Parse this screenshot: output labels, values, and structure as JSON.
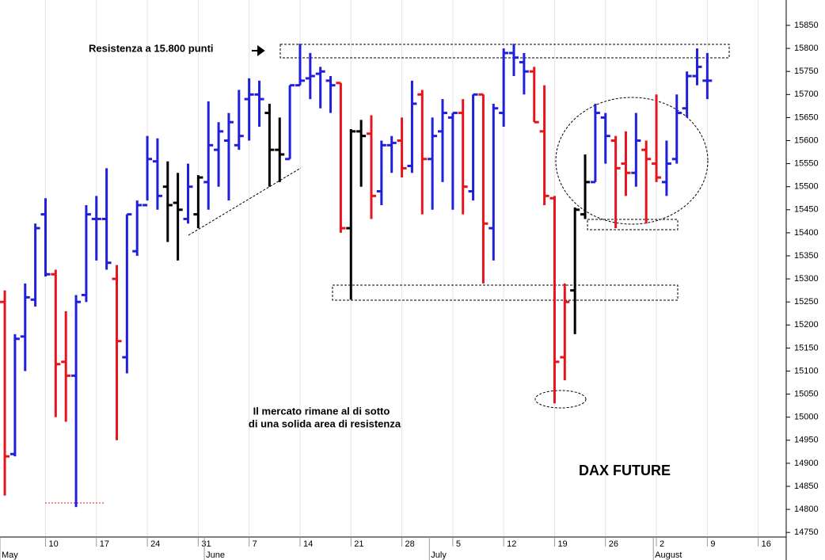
{
  "chart_data": {
    "type": "ohlc",
    "annotations": [
      "Resistenza a 15.800 punti",
      "Il mercato rimane al di sotto",
      "di una solida area di resistenza",
      "DAX FUTURE"
    ],
    "x": [
      0,
      1,
      2,
      3,
      4,
      5,
      6,
      7,
      8,
      9,
      10,
      11,
      12,
      13,
      14,
      15,
      16,
      17,
      18,
      19,
      20,
      21,
      22,
      23,
      24,
      25,
      26,
      27,
      28,
      29,
      30,
      31,
      32,
      33,
      34,
      35,
      36,
      37,
      38,
      39,
      40,
      41,
      42,
      43,
      44,
      45,
      46,
      47,
      48,
      49,
      50,
      51,
      52,
      53,
      54,
      55,
      56,
      57,
      58,
      59,
      60,
      61,
      62,
      63,
      64,
      65,
      66,
      67,
      68,
      69
    ],
    "open": [
      15250,
      14920,
      15175,
      15255,
      15440,
      15310,
      15120,
      15090,
      15265,
      15430,
      15430,
      15300,
      15130,
      15360,
      15460,
      15555,
      15500,
      15465,
      15430,
      15440,
      15510,
      15580,
      15600,
      15590,
      15690,
      15700,
      15660,
      15580,
      15560,
      15720,
      15735,
      15745,
      15730,
      15725,
      15410,
      15620,
      15615,
      15490,
      15590,
      15600,
      15545,
      15700,
      15560,
      15620,
      15650,
      15660,
      15490,
      15700,
      15410,
      15660,
      15790,
      15770,
      15750,
      15620,
      15475,
      15130,
      15275,
      15440,
      15510,
      15650,
      15600,
      15550,
      15530,
      15580,
      15550,
      15510,
      15560,
      15670,
      15740,
      15730
    ],
    "high": [
      15275,
      15180,
      15290,
      15420,
      15475,
      15320,
      15230,
      15265,
      15460,
      15480,
      15540,
      15330,
      15440,
      15470,
      15610,
      15605,
      15555,
      15530,
      15550,
      15525,
      15685,
      15640,
      15660,
      15710,
      15735,
      15730,
      15680,
      15650,
      15720,
      15810,
      15790,
      15760,
      15740,
      15725,
      15625,
      15645,
      15655,
      15600,
      15610,
      15650,
      15730,
      15710,
      15650,
      15690,
      15660,
      15690,
      15700,
      15700,
      15680,
      15800,
      15810,
      15790,
      15760,
      15720,
      15480,
      15290,
      15455,
      15570,
      15680,
      15660,
      15610,
      15620,
      15660,
      15600,
      15700,
      15600,
      15700,
      15750,
      15800,
      15790
    ],
    "low": [
      14830,
      14915,
      15100,
      15240,
      15305,
      15000,
      14990,
      14805,
      15250,
      15340,
      15320,
      14950,
      15095,
      15350,
      15470,
      15450,
      15380,
      15340,
      15420,
      15410,
      15450,
      15500,
      15470,
      15580,
      15600,
      15630,
      15500,
      15510,
      15560,
      15720,
      15690,
      15670,
      15660,
      15400,
      15255,
      15500,
      15430,
      15460,
      15530,
      15520,
      15530,
      15440,
      15450,
      15510,
      15450,
      15440,
      15470,
      15290,
      15340,
      15630,
      15740,
      15700,
      15640,
      15460,
      15030,
      15080,
      15180,
      15430,
      15510,
      15550,
      15410,
      15480,
      15500,
      15420,
      15510,
      15480,
      15550,
      15650,
      15720,
      15690
    ],
    "close": [
      14915,
      15170,
      15260,
      15410,
      15310,
      15115,
      15090,
      15250,
      15440,
      15430,
      15335,
      15165,
      15440,
      15460,
      15560,
      15480,
      15460,
      15450,
      15500,
      15520,
      15590,
      15620,
      15640,
      15610,
      15700,
      15690,
      15580,
      15570,
      15720,
      15730,
      15740,
      15750,
      15720,
      15410,
      15620,
      15610,
      15480,
      15590,
      15595,
      15540,
      15680,
      15560,
      15610,
      15660,
      15660,
      15500,
      15700,
      15420,
      15670,
      15790,
      15780,
      15750,
      15640,
      15480,
      15120,
      15250,
      15450,
      15510,
      15660,
      15610,
      15540,
      15530,
      15600,
      15560,
      15520,
      15550,
      15660,
      15740,
      15760,
      15730
    ],
    "colors": [
      "#e8141c",
      "#1f1fdc",
      "#1f1fdc",
      "#1f1fdc",
      "#1f1fdc",
      "#e8141c",
      "#e8141c",
      "#1f1fdc",
      "#1f1fdc",
      "#1f1fdc",
      "#1f1fdc",
      "#e8141c",
      "#1f1fdc",
      "#1f1fdc",
      "#1f1fdc",
      "#1f1fdc",
      "#000000",
      "#000000",
      "#1f1fdc",
      "#000000",
      "#1f1fdc",
      "#1f1fdc",
      "#1f1fdc",
      "#1f1fdc",
      "#1f1fdc",
      "#1f1fdc",
      "#000000",
      "#000000",
      "#1f1fdc",
      "#1f1fdc",
      "#1f1fdc",
      "#1f1fdc",
      "#1f1fdc",
      "#e8141c",
      "#000000",
      "#000000",
      "#e8141c",
      "#1f1fdc",
      "#1f1fdc",
      "#e8141c",
      "#1f1fdc",
      "#e8141c",
      "#1f1fdc",
      "#1f1fdc",
      "#1f1fdc",
      "#e8141c",
      "#1f1fdc",
      "#e8141c",
      "#1f1fdc",
      "#1f1fdc",
      "#1f1fdc",
      "#1f1fdc",
      "#e8141c",
      "#e8141c",
      "#e8141c",
      "#e8141c",
      "#000000",
      "#000000",
      "#1f1fdc",
      "#1f1fdc",
      "#e8141c",
      "#e8141c",
      "#1f1fdc",
      "#e8141c",
      "#e8141c",
      "#1f1fdc",
      "#1f1fdc",
      "#1f1fdc",
      "#1f1fdc",
      "#1f1fdc"
    ],
    "xlim": [
      -0.47,
      76.75
    ],
    "xticks": [
      {
        "value": 4,
        "label": "10"
      },
      {
        "value": 9,
        "label": "17"
      },
      {
        "value": 14,
        "label": "24"
      },
      {
        "value": 19,
        "label": "31"
      },
      {
        "value": 24,
        "label": "7"
      },
      {
        "value": 29,
        "label": "14"
      },
      {
        "value": 34,
        "label": "21"
      },
      {
        "value": 39,
        "label": "28"
      },
      {
        "value": 44,
        "label": "5"
      },
      {
        "value": 49,
        "label": "12"
      },
      {
        "value": 54,
        "label": "19"
      },
      {
        "value": 59,
        "label": "26"
      },
      {
        "value": 64,
        "label": "2"
      },
      {
        "value": 69,
        "label": "9"
      },
      {
        "value": 74,
        "label": "16"
      }
    ],
    "month_ticks": [
      {
        "value": -0.47,
        "label": "May"
      },
      {
        "value": 19.6,
        "label": "June"
      },
      {
        "value": 41.7,
        "label": "July"
      },
      {
        "value": 63.7,
        "label": "August"
      }
    ],
    "ylim": [
      14740,
      15905
    ],
    "yticks": [
      14750,
      14800,
      14850,
      14900,
      14950,
      15000,
      15050,
      15100,
      15150,
      15200,
      15250,
      15300,
      15350,
      15400,
      15450,
      15500,
      15550,
      15600,
      15650,
      15700,
      15750,
      15800,
      15850
    ],
    "grid": true
  }
}
